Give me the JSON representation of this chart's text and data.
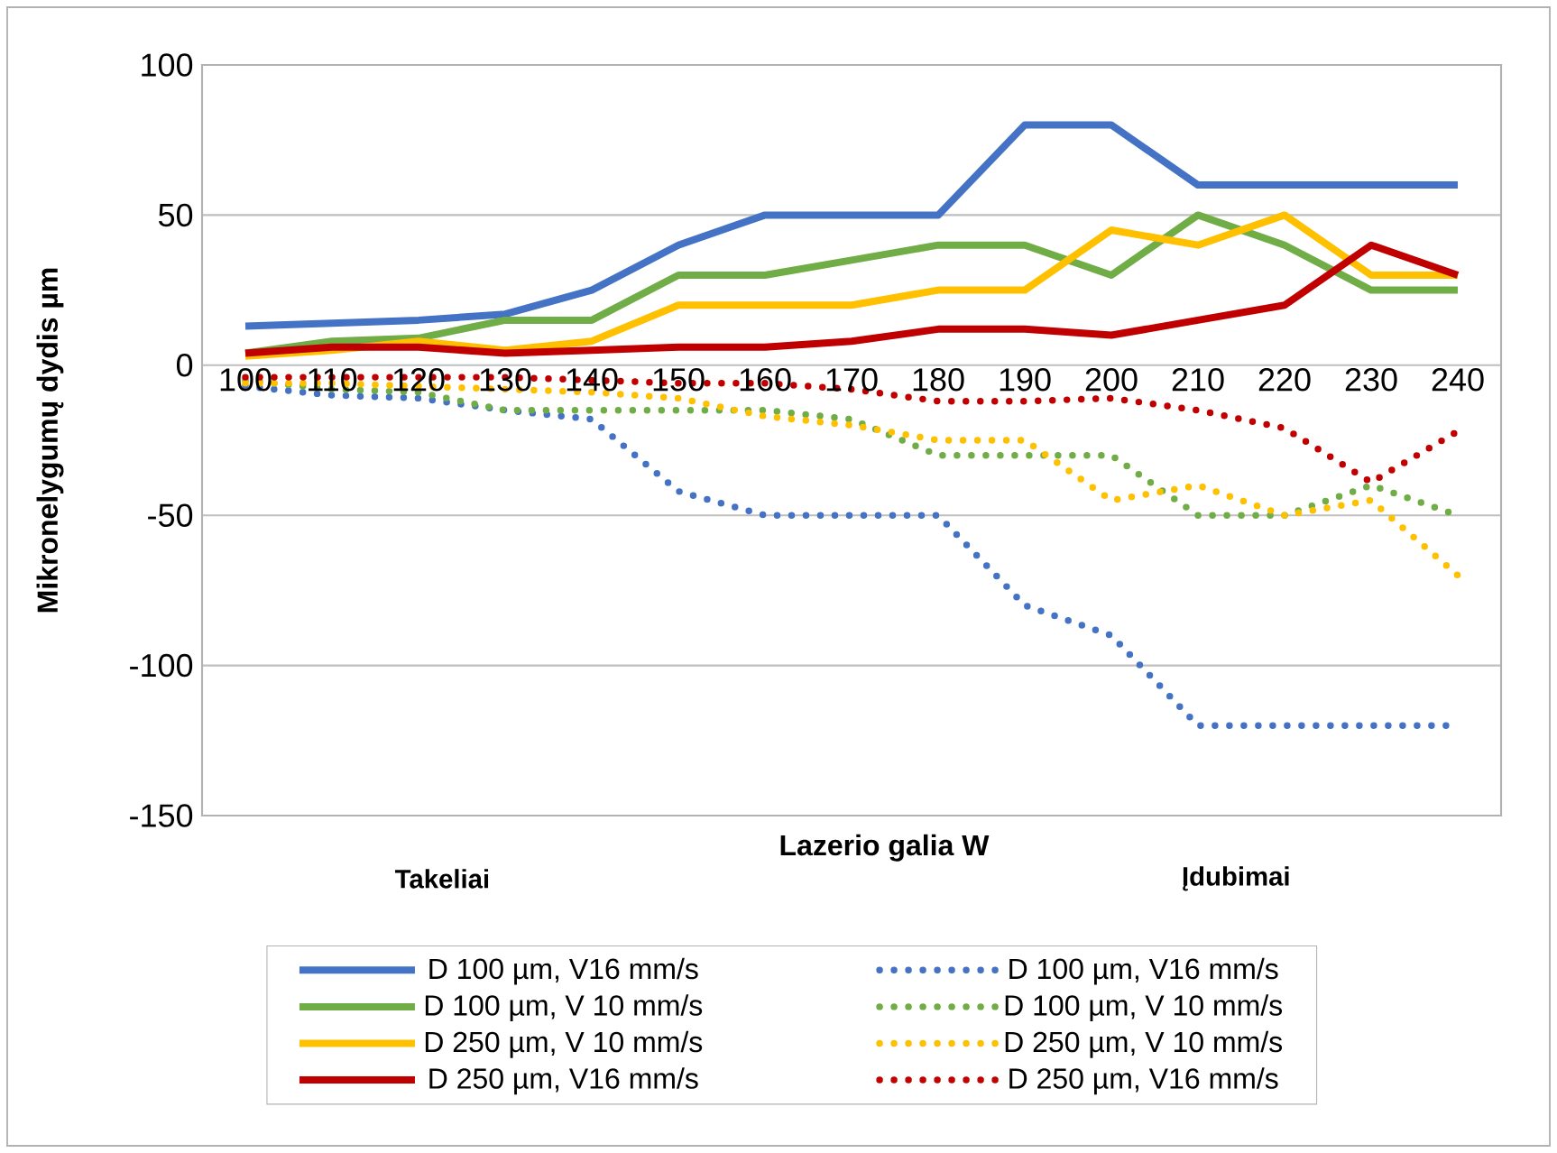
{
  "chart_data": {
    "type": "line",
    "categories": [
      "100",
      "110",
      "120",
      "130",
      "140",
      "150",
      "160",
      "170",
      "180",
      "190",
      "200",
      "210",
      "220",
      "230",
      "240"
    ],
    "xlabel": "Lazerio galia W",
    "ylabel": "Mikronelygumų dydis µm",
    "ylim": [
      -150,
      100
    ],
    "yticks": [
      -150,
      -100,
      -50,
      0,
      50,
      100
    ],
    "grid": "y",
    "legend": "bottom",
    "annotations": [
      "Takeliai",
      "Įdubimai"
    ],
    "series": [
      {
        "name": "D 100 µm, V16 mm/s",
        "color": "#4472c4",
        "line_style": "solid",
        "values": [
          13,
          14,
          15,
          17,
          25,
          40,
          50,
          50,
          50,
          80,
          80,
          60,
          60,
          60,
          60
        ]
      },
      {
        "name": "D 100 µm, V 10 mm/s",
        "color": "#70ad47",
        "line_style": "solid",
        "values": [
          4,
          8,
          9,
          15,
          15,
          30,
          30,
          35,
          40,
          40,
          30,
          50,
          40,
          25,
          25
        ]
      },
      {
        "name": "D 250 µm, V 10 mm/s",
        "color": "#ffc000",
        "line_style": "solid",
        "values": [
          3,
          5,
          8,
          5,
          8,
          20,
          20,
          20,
          25,
          25,
          45,
          40,
          50,
          30,
          30
        ]
      },
      {
        "name": "D 250 µm, V16 mm/s",
        "color": "#c00000",
        "line_style": "solid",
        "values": [
          4,
          6,
          6,
          4,
          5,
          6,
          6,
          8,
          12,
          12,
          10,
          15,
          20,
          40,
          30
        ]
      },
      {
        "name": "D 100 µm, V16 mm/s",
        "color": "#4472c4",
        "line_style": "dotted",
        "values": [
          -7,
          -10,
          -11,
          -15,
          -18,
          -42,
          -50,
          -50,
          -50,
          -80,
          -90,
          -120,
          -120,
          -120,
          -120
        ]
      },
      {
        "name": "D 100 µm, V 10 mm/s",
        "color": "#70ad47",
        "line_style": "dotted",
        "values": [
          -5,
          -8,
          -9,
          -15,
          -15,
          -15,
          -15,
          -18,
          -30,
          -30,
          -30,
          -50,
          -50,
          -40,
          -50
        ]
      },
      {
        "name": "D 250 µm, V 10 mm/s",
        "color": "#ffc000",
        "line_style": "dotted",
        "values": [
          -6,
          -6,
          -7,
          -8,
          -9,
          -11,
          -17,
          -20,
          -25,
          -25,
          -45,
          -40,
          -50,
          -45,
          -70
        ]
      },
      {
        "name": "D 250 µm, V16 mm/s",
        "color": "#c00000",
        "line_style": "dotted",
        "values": [
          -4,
          -4,
          -4,
          -4,
          -5,
          -6,
          -6,
          -8,
          -12,
          -12,
          -11,
          -15,
          -21,
          -39,
          -22
        ]
      }
    ]
  }
}
